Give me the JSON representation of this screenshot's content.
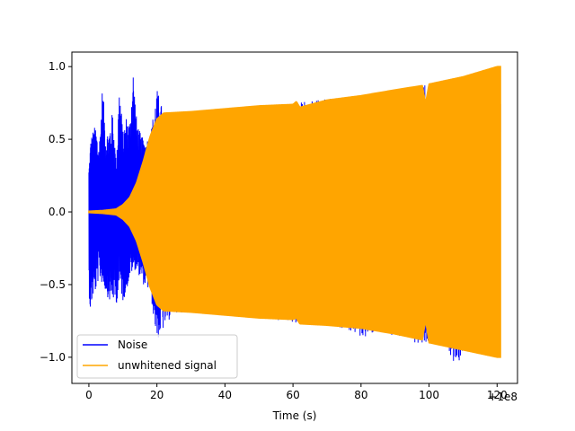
{
  "chart_data": {
    "type": "line",
    "title": "",
    "xlabel": "Time (s)",
    "ylabel": "",
    "x_offset_label": "+1e8",
    "xlim": [
      -5,
      126
    ],
    "ylim": [
      -1.18,
      1.1
    ],
    "xticks": [
      0,
      20,
      40,
      60,
      80,
      100,
      120
    ],
    "xtick_labels": [
      "0",
      "20",
      "40",
      "60",
      "80",
      "100",
      "120"
    ],
    "yticks": [
      -1.0,
      -0.5,
      0.0,
      0.5,
      1.0
    ],
    "ytick_labels": [
      "−1.0",
      "−0.5",
      "0.0",
      "0.5",
      "1.0"
    ],
    "grid": false,
    "legend": {
      "placement": "lower-left",
      "entries": [
        {
          "label": "Noise",
          "color": "#0000ff"
        },
        {
          "label": "unwhitened signal",
          "color": "#ffa500"
        }
      ]
    },
    "series": [
      {
        "name": "Noise",
        "color": "#0000ff",
        "x_range": [
          0,
          121
        ],
        "envelope_upper": [
          [
            0,
            0.31
          ],
          [
            0.5,
            0.5
          ],
          [
            1,
            0.55
          ],
          [
            2,
            0.6
          ],
          [
            3,
            0.45
          ],
          [
            4,
            0.88
          ],
          [
            5,
            0.55
          ],
          [
            6,
            0.57
          ],
          [
            7,
            0.7
          ],
          [
            8,
            0.35
          ],
          [
            9,
            0.89
          ],
          [
            10,
            0.55
          ],
          [
            11,
            0.66
          ],
          [
            12,
            0.62
          ],
          [
            13,
            1.0
          ],
          [
            14,
            0.65
          ],
          [
            15,
            0.55
          ],
          [
            16,
            0.5
          ],
          [
            18,
            0.52
          ],
          [
            20,
            0.85
          ],
          [
            22,
            0.68
          ],
          [
            26,
            0.68
          ],
          [
            30,
            0.69
          ],
          [
            35,
            0.7
          ],
          [
            40,
            0.71
          ],
          [
            45,
            0.72
          ],
          [
            50,
            0.73
          ],
          [
            55,
            0.74
          ],
          [
            60,
            0.75
          ],
          [
            65,
            0.76
          ],
          [
            70,
            0.78
          ],
          [
            75,
            0.79
          ],
          [
            80,
            0.8
          ],
          [
            85,
            0.82
          ],
          [
            90,
            0.84
          ],
          [
            95,
            0.86
          ],
          [
            100,
            0.88
          ],
          [
            105,
            0.9
          ],
          [
            110,
            0.93
          ],
          [
            115,
            0.96
          ],
          [
            120,
            1.0
          ]
        ],
        "envelope_lower": [
          [
            0,
            -0.55
          ],
          [
            0.5,
            -0.72
          ],
          [
            1,
            -0.6
          ],
          [
            2,
            -0.55
          ],
          [
            3,
            -0.45
          ],
          [
            4,
            -0.5
          ],
          [
            5,
            -0.55
          ],
          [
            6,
            -0.62
          ],
          [
            7,
            -0.6
          ],
          [
            8,
            -0.65
          ],
          [
            9,
            -0.5
          ],
          [
            10,
            -0.62
          ],
          [
            11,
            -0.55
          ],
          [
            12,
            -0.45
          ],
          [
            13,
            -0.4
          ],
          [
            14,
            -0.4
          ],
          [
            16,
            -0.5
          ],
          [
            18,
            -0.55
          ],
          [
            20,
            -0.89
          ],
          [
            25,
            -0.69
          ],
          [
            30,
            -0.7
          ],
          [
            35,
            -0.71
          ],
          [
            40,
            -0.72
          ],
          [
            45,
            -0.73
          ],
          [
            50,
            -0.74
          ],
          [
            55,
            -0.75
          ],
          [
            60,
            -0.76
          ],
          [
            65,
            -0.77
          ],
          [
            70,
            -0.79
          ],
          [
            75,
            -0.8
          ],
          [
            80,
            -0.87
          ],
          [
            85,
            -0.83
          ],
          [
            90,
            -0.85
          ],
          [
            95,
            -0.9
          ],
          [
            100,
            -0.9
          ],
          [
            105,
            -0.92
          ],
          [
            108,
            -1.08
          ],
          [
            110,
            -0.95
          ],
          [
            115,
            -0.97
          ],
          [
            120,
            -1.0
          ]
        ]
      },
      {
        "name": "unwhitened signal",
        "color": "#ffa500",
        "x_range": [
          0,
          121
        ],
        "envelope_upper": [
          [
            0,
            0.005
          ],
          [
            4,
            0.01
          ],
          [
            8,
            0.02
          ],
          [
            10,
            0.05
          ],
          [
            12,
            0.1
          ],
          [
            14,
            0.2
          ],
          [
            16,
            0.35
          ],
          [
            18,
            0.52
          ],
          [
            20,
            0.64
          ],
          [
            22,
            0.68
          ],
          [
            30,
            0.69
          ],
          [
            40,
            0.71
          ],
          [
            50,
            0.73
          ],
          [
            60,
            0.74
          ],
          [
            61,
            0.76
          ],
          [
            62,
            0.72
          ],
          [
            70,
            0.77
          ],
          [
            80,
            0.8
          ],
          [
            90,
            0.84
          ],
          [
            98,
            0.87
          ],
          [
            99,
            0.75
          ],
          [
            100,
            0.88
          ],
          [
            110,
            0.93
          ],
          [
            120,
            1.0
          ]
        ],
        "envelope_lower": [
          [
            0,
            -0.005
          ],
          [
            4,
            -0.01
          ],
          [
            8,
            -0.02
          ],
          [
            10,
            -0.05
          ],
          [
            12,
            -0.1
          ],
          [
            14,
            -0.2
          ],
          [
            16,
            -0.35
          ],
          [
            18,
            -0.52
          ],
          [
            20,
            -0.64
          ],
          [
            22,
            -0.68
          ],
          [
            30,
            -0.69
          ],
          [
            40,
            -0.71
          ],
          [
            50,
            -0.73
          ],
          [
            60,
            -0.74
          ],
          [
            61,
            -0.73
          ],
          [
            62,
            -0.77
          ],
          [
            70,
            -0.78
          ],
          [
            80,
            -0.8
          ],
          [
            90,
            -0.84
          ],
          [
            98,
            -0.88
          ],
          [
            99,
            -0.75
          ],
          [
            100,
            -0.9
          ],
          [
            110,
            -0.95
          ],
          [
            120,
            -1.0
          ]
        ]
      }
    ]
  }
}
